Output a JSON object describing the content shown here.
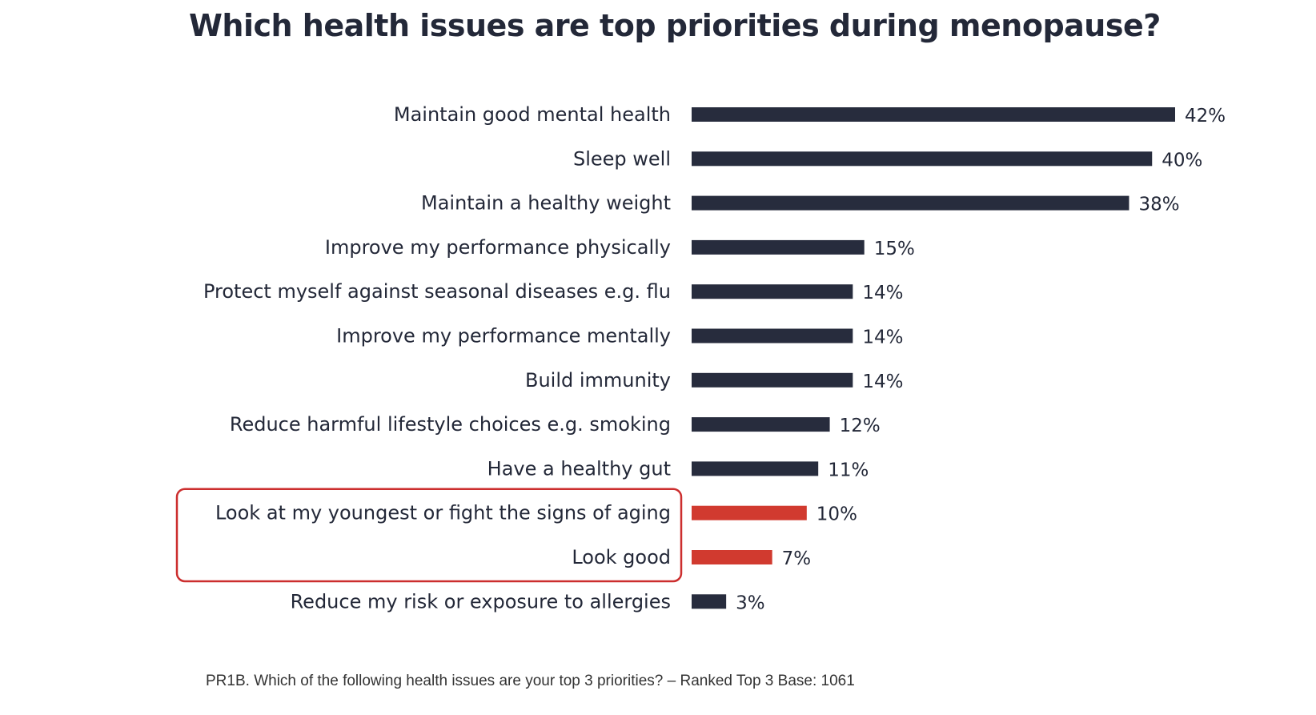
{
  "title": "Which health issues are top priorities during menopause?",
  "footnote": "PR1B. Which of the following health issues are your top 3 priorities? – Ranked Top 3 Base: 1061",
  "colors": {
    "default_bar": "#272c3d",
    "highlight_bar": "#d13a2f",
    "highlight_box": "#cc2e2e",
    "label_text": "#232838"
  },
  "chart_data": {
    "type": "bar",
    "orientation": "horizontal",
    "categories": [
      "Maintain good mental health",
      "Sleep well",
      "Maintain a healthy weight",
      "Improve my performance physically",
      "Protect myself against seasonal diseases e.g. flu",
      "Improve my performance mentally",
      "Build immunity",
      "Reduce harmful lifestyle choices e.g. smoking",
      "Have a healthy gut",
      "Look at my youngest or fight the signs of aging",
      "Look good",
      "Reduce my risk or exposure to allergies"
    ],
    "values": [
      42,
      40,
      38,
      15,
      14,
      14,
      14,
      12,
      11,
      10,
      7,
      3
    ],
    "value_labels": [
      "42%",
      "40%",
      "38%",
      "15%",
      "14%",
      "14%",
      "14%",
      "12%",
      "11%",
      "10%",
      "7%",
      "3%"
    ],
    "highlighted": [
      false,
      false,
      false,
      false,
      false,
      false,
      false,
      false,
      false,
      true,
      true,
      false
    ],
    "title": "Which health issues are top priorities during menopause?",
    "xlabel": "",
    "ylabel": "",
    "grid": false,
    "legend": "none"
  }
}
